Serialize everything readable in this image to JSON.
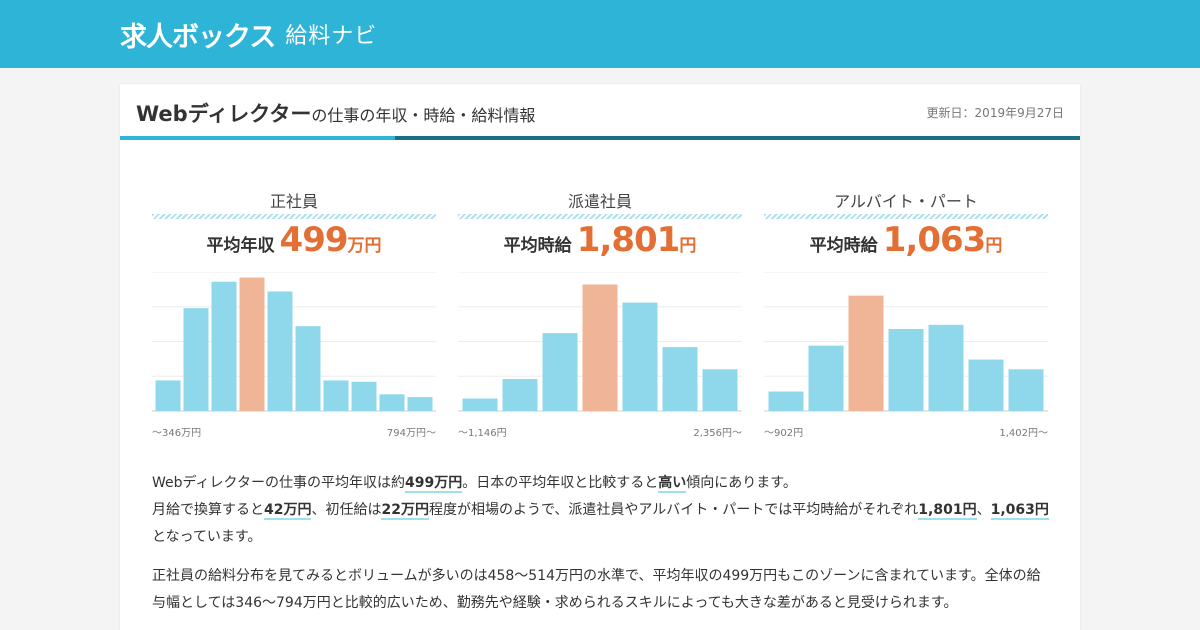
{
  "header": {
    "logo_main": "求人ボックス",
    "logo_sub": "給料ナビ"
  },
  "page": {
    "title_main": "Webディレクター",
    "title_sub": "の仕事の年収・時給・給料情報",
    "updated": "更新日：2019年9月27日"
  },
  "colors": {
    "brand": "#2db4d6",
    "bar": "#8fd8ec",
    "bar_highlight": "#f0b596",
    "accent_orange": "#e36f34"
  },
  "panels": [
    {
      "heading": "正社員",
      "avg_label": "平均年収",
      "avg_value": "499",
      "avg_unit": "万円",
      "min_label": "～346万円",
      "max_label": "794万円～"
    },
    {
      "heading": "派遣社員",
      "avg_label": "平均時給",
      "avg_value": "1,801",
      "avg_unit": "円",
      "min_label": "～1,146円",
      "max_label": "2,356円～"
    },
    {
      "heading": "アルバイト・パート",
      "avg_label": "平均時給",
      "avg_value": "1,063",
      "avg_unit": "円",
      "min_label": "～902円",
      "max_label": "1,402円～"
    }
  ],
  "chart_data": [
    {
      "type": "bar",
      "values": [
        22,
        74,
        93,
        96,
        86,
        61,
        22,
        21,
        12,
        10
      ],
      "highlight_index": 3,
      "ylim": [
        0,
        100
      ]
    },
    {
      "type": "bar",
      "values": [
        9,
        23,
        56,
        91,
        78,
        46,
        30
      ],
      "highlight_index": 3,
      "ylim": [
        0,
        100
      ]
    },
    {
      "type": "bar",
      "values": [
        14,
        47,
        83,
        59,
        62,
        37,
        30
      ],
      "highlight_index": 2,
      "ylim": [
        0,
        100
      ]
    }
  ],
  "description": {
    "p1": {
      "t1": "Webディレクターの仕事の平均年収は約",
      "b1": "499万円",
      "t2": "。日本の平均年収と比較すると",
      "b2": "高い",
      "t3": "傾向にあります。",
      "t4": "月給で換算すると",
      "b3": "42万円",
      "t5": "、初任給は",
      "b4": "22万円",
      "t6": "程度が相場のようで、派遣社員やアルバイト・パートでは平均時給がそれぞれ",
      "b5": "1,801円",
      "t7": "、",
      "b6": "1,063円",
      "t8": "となっています。"
    },
    "p2": "正社員の給料分布を見てみるとボリュームが多いのは458〜514万円の水準で、平均年収の499万円もこのゾーンに含まれています。全体の給与幅としては346〜794万円と比較的広いため、勤務先や経験・求められるスキルによっても大きな差があると見受けられます。"
  }
}
